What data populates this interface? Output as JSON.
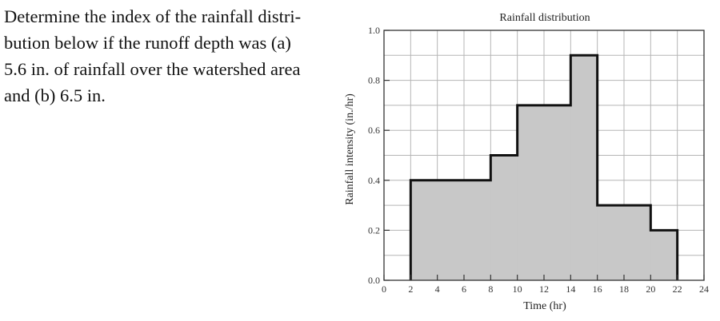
{
  "problem": {
    "lines": [
      "Determine the index of the rainfall distri-",
      "bution below if the runoff depth was (a)",
      "5.6 in. of rainfall over the watershed area",
      "and (b) 6.5 in."
    ]
  },
  "chart_data": {
    "type": "area",
    "title": "Rainfall distribution",
    "xlabel": "Time (hr)",
    "ylabel": "Rainfall intensity (in./hr)",
    "xlim": [
      0,
      24
    ],
    "ylim": [
      0,
      1.0
    ],
    "grid": true,
    "x_ticks": [
      0,
      2,
      4,
      6,
      8,
      10,
      12,
      14,
      16,
      18,
      20,
      22,
      24
    ],
    "x_tick_labels": [
      "0",
      "2",
      "4",
      "6",
      "8",
      "10",
      "12",
      "14",
      "16",
      "18",
      "20",
      "22",
      "24"
    ],
    "y_ticks": [
      0,
      0.2,
      0.4,
      0.6,
      0.8,
      1.0
    ],
    "y_tick_labels": [
      "0.0",
      "0.2",
      "0.4",
      "0.6",
      "0.8",
      "1.0"
    ],
    "steps": [
      {
        "start": 2,
        "end": 8,
        "intensity": 0.4
      },
      {
        "start": 8,
        "end": 10,
        "intensity": 0.5
      },
      {
        "start": 10,
        "end": 14,
        "intensity": 0.7
      },
      {
        "start": 14,
        "end": 16,
        "intensity": 0.9
      },
      {
        "start": 16,
        "end": 20,
        "intensity": 0.3
      },
      {
        "start": 20,
        "end": 22,
        "intensity": 0.2
      }
    ],
    "colors": {
      "fill": "#c8c8c8",
      "outline": "#111111",
      "grid": "#b5b5b5",
      "axis": "#333333"
    }
  }
}
